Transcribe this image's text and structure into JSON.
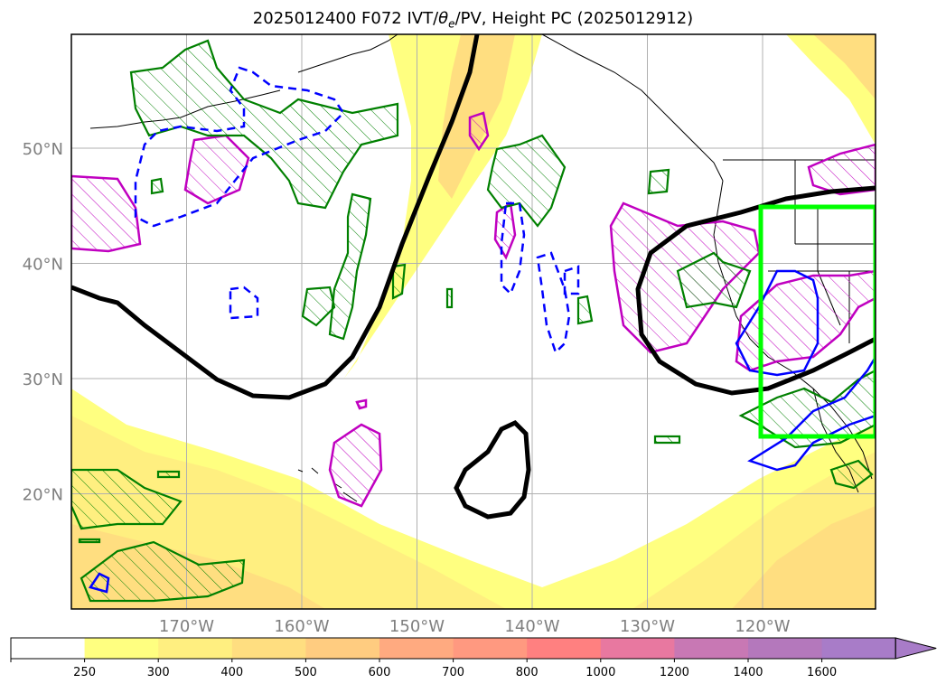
{
  "title_prefix": "2025012400 F072 IVT/",
  "title_theta": "θ",
  "title_theta_sub": "e",
  "title_suffix": "/PV, Height PC (2025012912)",
  "lat_labels": [
    {
      "text": "50°N",
      "lat": 50
    },
    {
      "text": "40°N",
      "lat": 40
    },
    {
      "text": "30°N",
      "lat": 30
    },
    {
      "text": "20°N",
      "lat": 20
    }
  ],
  "lon_labels": [
    {
      "text": "170°W",
      "lon": -170
    },
    {
      "text": "160°W",
      "lon": -160
    },
    {
      "text": "150°W",
      "lon": -150
    },
    {
      "text": "140°W",
      "lon": -140
    },
    {
      "text": "130°W",
      "lon": -130
    },
    {
      "text": "120°W",
      "lon": -120
    }
  ],
  "colorbar": {
    "ticks": [
      "250",
      "300",
      "400",
      "500",
      "600",
      "700",
      "800",
      "1000",
      "1200",
      "1400",
      "1600"
    ],
    "colors": [
      "#ffffff",
      "#ffff80",
      "#ffef80",
      "#ffde80",
      "#ffcc80",
      "#ffaa80",
      "#ff9980",
      "#ff8080",
      "#e878a0",
      "#c878b4",
      "#b478bc",
      "#a87cc8"
    ]
  },
  "legend_colors": {
    "height_pc": "#000000",
    "theta_e_positive": "#0000ff",
    "theta_e_negative": "#0000ff",
    "pv": "#008000",
    "ivt_anom": "#c000c0",
    "domain_box": "#00ff00"
  }
}
